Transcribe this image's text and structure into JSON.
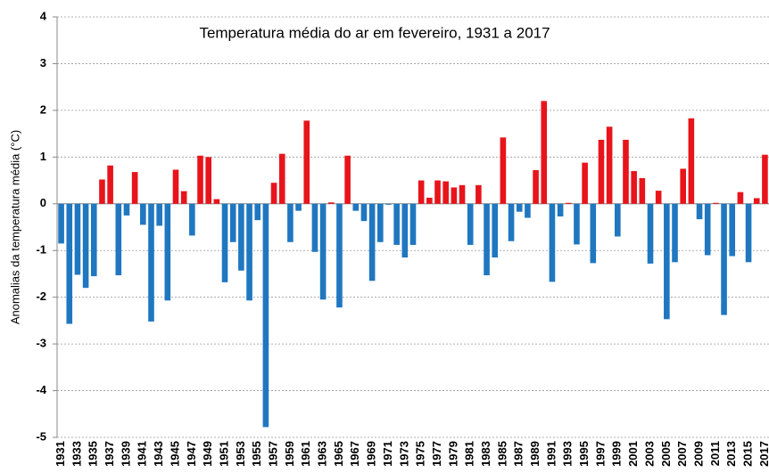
{
  "chart_data": {
    "type": "bar",
    "title": "Temperatura média do ar em fevereiro, 1931 a 2017",
    "y_label": "Anomalias da temperatura média (°C)",
    "categories": [
      "1931",
      null,
      "1933",
      null,
      "1935",
      null,
      "1937",
      null,
      "1939",
      null,
      "1941",
      null,
      "1943",
      null,
      "1945",
      null,
      "1947",
      null,
      "1949",
      null,
      "1951",
      null,
      "1953",
      null,
      "1955",
      null,
      "1957",
      null,
      "1959",
      null,
      "1961",
      null,
      "1963",
      null,
      "1965",
      null,
      "1967",
      null,
      "1969",
      null,
      "1971",
      null,
      "1973",
      null,
      "1975",
      null,
      "1977",
      null,
      "1979",
      null,
      "1981",
      null,
      "1983",
      null,
      "1985",
      null,
      "1987",
      null,
      "1989",
      null,
      "1991",
      null,
      "1993",
      null,
      "1995",
      null,
      "1997",
      null,
      "1999",
      null,
      "2001",
      null,
      "2003",
      null,
      "2005",
      null,
      "2007",
      null,
      "2009",
      null,
      "2011",
      null,
      "2013",
      null,
      "2015",
      null,
      "2017"
    ],
    "values": [
      -0.85,
      -2.57,
      -1.52,
      -1.8,
      -1.55,
      0.52,
      0.82,
      -1.53,
      -0.25,
      0.68,
      -0.45,
      -2.52,
      -0.47,
      -2.07,
      0.73,
      0.27,
      -0.68,
      1.03,
      1.0,
      0.1,
      -1.68,
      -0.82,
      -1.43,
      -2.07,
      -0.35,
      -4.78,
      0.45,
      1.07,
      -0.82,
      -0.15,
      1.78,
      -1.03,
      -2.05,
      0.03,
      -2.22,
      1.03,
      -0.15,
      -0.37,
      -1.65,
      -0.82,
      -0.02,
      -0.88,
      -1.15,
      -0.88,
      0.5,
      0.13,
      0.5,
      0.48,
      0.35,
      0.4,
      -0.88,
      0.4,
      -1.53,
      -1.15,
      1.42,
      -0.8,
      -0.17,
      -0.3,
      0.72,
      2.2,
      -1.67,
      -0.27,
      0.02,
      -0.87,
      0.88,
      -1.27,
      1.37,
      1.65,
      -0.7,
      1.37,
      0.7,
      0.55,
      -1.28,
      0.28,
      -2.47,
      -1.25,
      0.75,
      1.83,
      -0.33,
      -1.1,
      0.02,
      -2.38,
      -1.12,
      0.25,
      -1.25,
      0.12,
      1.05
    ],
    "color_positive": "#e8141b",
    "color_negative": "#1f77c0",
    "ylim": [
      -5,
      4
    ],
    "yticks": [
      -5,
      -4,
      -3,
      -2,
      -1,
      0,
      1,
      2,
      3,
      4
    ],
    "grid": true
  }
}
